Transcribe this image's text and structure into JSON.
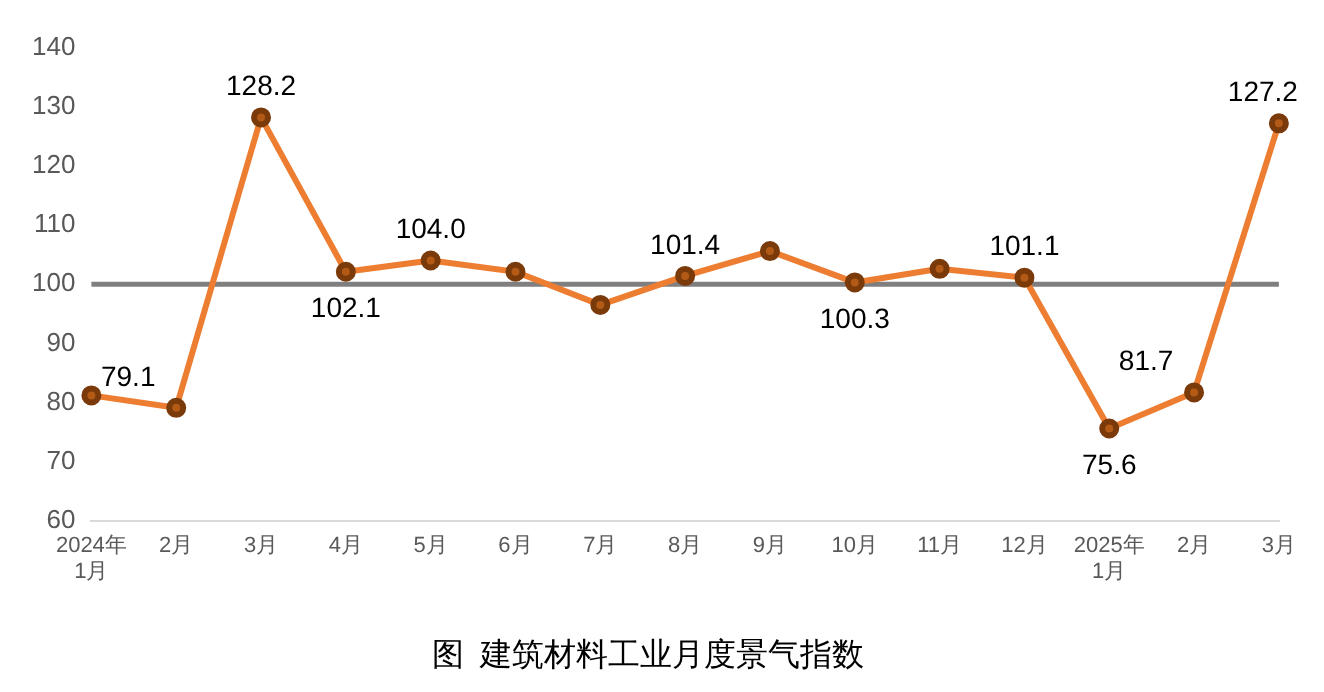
{
  "chart_data": {
    "type": "line",
    "title": "图  建筑材料工业月度景气指数",
    "categories": [
      "2024年\n1月",
      "2月",
      "3月",
      "4月",
      "5月",
      "6月",
      "7月",
      "8月",
      "9月",
      "10月",
      "11月",
      "12月",
      "2025年\n1月",
      "2月",
      "3月"
    ],
    "series": [
      {
        "color": "#ed7d31",
        "values": [
          81.2,
          79.1,
          128.2,
          102.1,
          104.0,
          102.1,
          96.5,
          101.4,
          105.6,
          100.3,
          102.6,
          101.1,
          75.6,
          81.7,
          127.2
        ],
        "value_labels": [
          null,
          "79.1",
          "128.2",
          "102.1",
          "104.0",
          null,
          null,
          "101.4",
          null,
          "100.3",
          null,
          "101.1",
          "75.6",
          "81.7",
          "127.2"
        ]
      }
    ],
    "ylim": [
      60,
      140
    ],
    "yticks": [
      60,
      70,
      80,
      90,
      100,
      110,
      120,
      130,
      140
    ],
    "ref_lines": [
      {
        "axis": "y",
        "value": 100,
        "color": "#7f7f7f"
      }
    ],
    "grid": false,
    "legend": false,
    "marker": "circle",
    "line_style": "solid"
  }
}
